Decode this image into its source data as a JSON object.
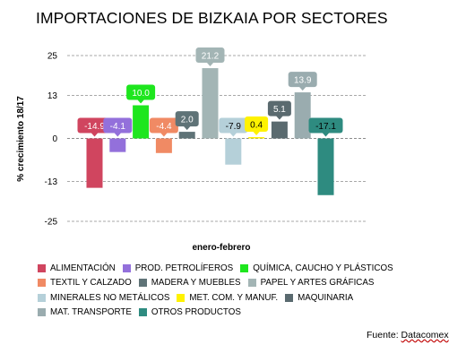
{
  "chart_data": {
    "type": "bar",
    "title": "IMPORTACIONES DE BIZKAIA POR SECTORES",
    "xlabel": "enero-febrero",
    "ylabel": "% crecimiento 18/17",
    "ylim": [
      -25,
      25
    ],
    "yticks": [
      25,
      13,
      0,
      -13,
      -25
    ],
    "grid": true,
    "legend_position": "bottom",
    "categories": [
      "ALIMENTACIÓN",
      "PROD. PETROLÍFEROS",
      "QUÍMICA, CAUCHO Y PLÁSTICOS",
      "TEXTIL Y CALZADO",
      "MADERA Y MUEBLES",
      "PAPEL Y ARTES GRÁFICAS",
      "MINERALES NO METÁLICOS",
      "MET. COM. Y MANUF.",
      "MAQUINARIA",
      "MAT. TRANSPORTE",
      "OTROS PRODUCTOS"
    ],
    "values": [
      -14.9,
      -4.1,
      10.0,
      -4.4,
      2.0,
      21.2,
      -7.9,
      0.4,
      5.1,
      13.9,
      -17.1
    ],
    "value_labels": [
      "-14.9",
      "-4.1",
      "10.0",
      "-4.4",
      "2.0",
      "21.2",
      "-7.9",
      "0.4",
      "5.1",
      "13.9",
      "-17.1"
    ],
    "colors": [
      "#d0455f",
      "#9370db",
      "#1ee61e",
      "#f08a64",
      "#5f7377",
      "#a3b5b5",
      "#b5d0d9",
      "#fff200",
      "#5a6a6f",
      "#9aacaf",
      "#2e8b80"
    ],
    "label_text_colors": [
      "#ffffff",
      "#ffffff",
      "#ffffff",
      "#ffffff",
      "#ffffff",
      "#ffffff",
      "#000000",
      "#000000",
      "#ffffff",
      "#ffffff",
      "#000000"
    ]
  },
  "source": {
    "prefix": "Fuente: ",
    "name": "Datacomex"
  }
}
